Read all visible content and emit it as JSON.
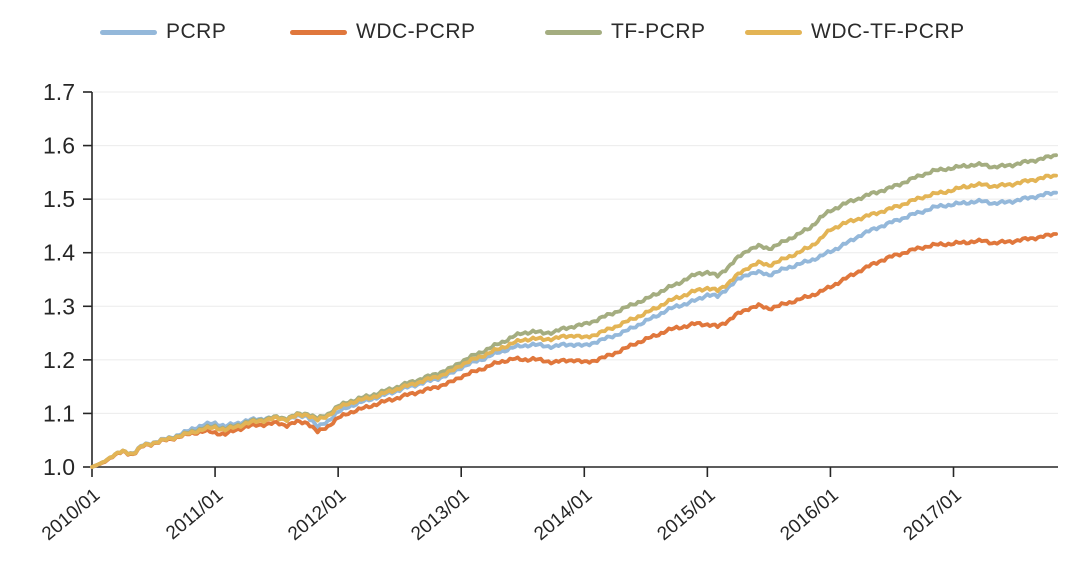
{
  "legend": {
    "items": [
      {
        "label": "PCRP",
        "color": "#94b8da"
      },
      {
        "label": "WDC-PCRP",
        "color": "#e0773c"
      },
      {
        "label": "TF-PCRP",
        "color": "#a4ad80"
      },
      {
        "label": "WDC-TF-PCRP",
        "color": "#e3b455"
      }
    ]
  },
  "chart_data": {
    "type": "line",
    "title": "",
    "xlabel": "",
    "ylabel": "",
    "ylim": [
      1.0,
      1.7
    ],
    "grid": "horizontal",
    "legend_position": "top",
    "y_tick_labels": [
      "1.0",
      "1.1",
      "1.2",
      "1.3",
      "1.4",
      "1.5",
      "1.6",
      "1.7"
    ],
    "y_ticks": [
      1.0,
      1.1,
      1.2,
      1.3,
      1.4,
      1.5,
      1.6,
      1.7
    ],
    "x_tick_labels": [
      "2010/01",
      "2011/01",
      "2012/01",
      "2013/01",
      "2014/01",
      "2015/01",
      "2016/01",
      "2017/01"
    ],
    "categories": [
      "2010/01",
      "2010/02",
      "2010/03",
      "2010/04",
      "2010/05",
      "2010/06",
      "2010/07",
      "2010/08",
      "2010/09",
      "2010/10",
      "2010/11",
      "2010/12",
      "2011/01",
      "2011/02",
      "2011/03",
      "2011/04",
      "2011/05",
      "2011/06",
      "2011/07",
      "2011/08",
      "2011/09",
      "2011/10",
      "2011/11",
      "2011/12",
      "2012/01",
      "2012/02",
      "2012/03",
      "2012/04",
      "2012/05",
      "2012/06",
      "2012/07",
      "2012/08",
      "2012/09",
      "2012/10",
      "2012/11",
      "2012/12",
      "2013/01",
      "2013/02",
      "2013/03",
      "2013/04",
      "2013/05",
      "2013/06",
      "2013/07",
      "2013/08",
      "2013/09",
      "2013/10",
      "2013/11",
      "2013/12",
      "2014/01",
      "2014/02",
      "2014/03",
      "2014/04",
      "2014/05",
      "2014/06",
      "2014/07",
      "2014/08",
      "2014/09",
      "2014/10",
      "2014/11",
      "2014/12",
      "2015/01",
      "2015/02",
      "2015/03",
      "2015/04",
      "2015/05",
      "2015/06",
      "2015/07",
      "2015/08",
      "2015/09",
      "2015/10",
      "2015/11",
      "2015/12",
      "2016/01",
      "2016/02",
      "2016/03",
      "2016/04",
      "2016/05",
      "2016/06",
      "2016/07",
      "2016/08",
      "2016/09",
      "2016/10",
      "2016/11",
      "2016/12",
      "2017/01",
      "2017/02",
      "2017/03",
      "2017/04",
      "2017/05",
      "2017/06",
      "2017/07",
      "2017/08",
      "2017/09",
      "2017/10",
      "2017/11"
    ],
    "series": [
      {
        "name": "PCRP",
        "color": "#94b8da",
        "values": [
          1.0,
          1.008,
          1.021,
          1.029,
          1.026,
          1.041,
          1.046,
          1.051,
          1.057,
          1.064,
          1.073,
          1.079,
          1.082,
          1.076,
          1.081,
          1.086,
          1.089,
          1.091,
          1.092,
          1.089,
          1.094,
          1.096,
          1.074,
          1.086,
          1.102,
          1.113,
          1.119,
          1.126,
          1.131,
          1.138,
          1.144,
          1.15,
          1.156,
          1.161,
          1.167,
          1.174,
          1.186,
          1.194,
          1.201,
          1.209,
          1.216,
          1.223,
          1.226,
          1.229,
          1.226,
          1.225,
          1.228,
          1.229,
          1.226,
          1.233,
          1.239,
          1.246,
          1.253,
          1.263,
          1.272,
          1.282,
          1.292,
          1.3,
          1.305,
          1.312,
          1.322,
          1.318,
          1.335,
          1.35,
          1.361,
          1.363,
          1.359,
          1.366,
          1.373,
          1.379,
          1.385,
          1.393,
          1.402,
          1.412,
          1.422,
          1.434,
          1.442,
          1.45,
          1.457,
          1.464,
          1.471,
          1.477,
          1.484,
          1.488,
          1.49,
          1.493,
          1.495,
          1.496,
          1.492,
          1.494,
          1.497,
          1.501,
          1.505,
          1.509,
          1.512
        ]
      },
      {
        "name": "WDC-PCRP",
        "color": "#e0773c",
        "values": [
          1.0,
          1.007,
          1.02,
          1.028,
          1.024,
          1.039,
          1.044,
          1.049,
          1.054,
          1.059,
          1.064,
          1.067,
          1.064,
          1.061,
          1.069,
          1.075,
          1.078,
          1.08,
          1.082,
          1.078,
          1.084,
          1.083,
          1.065,
          1.076,
          1.091,
          1.101,
          1.107,
          1.113,
          1.119,
          1.125,
          1.13,
          1.136,
          1.141,
          1.146,
          1.152,
          1.158,
          1.169,
          1.176,
          1.183,
          1.191,
          1.197,
          1.202,
          1.2,
          1.202,
          1.198,
          1.196,
          1.198,
          1.2,
          1.195,
          1.199,
          1.205,
          1.213,
          1.221,
          1.231,
          1.238,
          1.246,
          1.254,
          1.26,
          1.263,
          1.268,
          1.266,
          1.262,
          1.273,
          1.286,
          1.296,
          1.301,
          1.296,
          1.301,
          1.307,
          1.313,
          1.319,
          1.327,
          1.336,
          1.347,
          1.357,
          1.368,
          1.377,
          1.386,
          1.393,
          1.399,
          1.405,
          1.41,
          1.414,
          1.416,
          1.417,
          1.419,
          1.421,
          1.422,
          1.418,
          1.42,
          1.422,
          1.425,
          1.428,
          1.431,
          1.435
        ]
      },
      {
        "name": "TF-PCRP",
        "color": "#a4ad80",
        "values": [
          1.0,
          1.008,
          1.021,
          1.029,
          1.025,
          1.04,
          1.045,
          1.05,
          1.056,
          1.061,
          1.068,
          1.073,
          1.076,
          1.071,
          1.077,
          1.083,
          1.087,
          1.09,
          1.093,
          1.091,
          1.098,
          1.1,
          1.09,
          1.099,
          1.113,
          1.122,
          1.127,
          1.133,
          1.138,
          1.145,
          1.151,
          1.158,
          1.164,
          1.17,
          1.177,
          1.184,
          1.197,
          1.206,
          1.215,
          1.224,
          1.233,
          1.243,
          1.25,
          1.253,
          1.25,
          1.252,
          1.258,
          1.263,
          1.266,
          1.273,
          1.281,
          1.289,
          1.297,
          1.306,
          1.313,
          1.323,
          1.333,
          1.341,
          1.352,
          1.36,
          1.364,
          1.356,
          1.373,
          1.391,
          1.406,
          1.412,
          1.408,
          1.416,
          1.426,
          1.436,
          1.446,
          1.465,
          1.478,
          1.488,
          1.496,
          1.503,
          1.51,
          1.516,
          1.522,
          1.53,
          1.538,
          1.546,
          1.552,
          1.556,
          1.558,
          1.562,
          1.564,
          1.564,
          1.56,
          1.562,
          1.565,
          1.569,
          1.573,
          1.577,
          1.582
        ]
      },
      {
        "name": "WDC-TF-PCRP",
        "color": "#e3b455",
        "values": [
          1.0,
          1.008,
          1.021,
          1.029,
          1.025,
          1.04,
          1.045,
          1.05,
          1.055,
          1.06,
          1.066,
          1.071,
          1.074,
          1.069,
          1.075,
          1.081,
          1.085,
          1.088,
          1.091,
          1.089,
          1.096,
          1.098,
          1.087,
          1.096,
          1.11,
          1.119,
          1.124,
          1.129,
          1.134,
          1.141,
          1.147,
          1.153,
          1.159,
          1.165,
          1.171,
          1.178,
          1.191,
          1.199,
          1.207,
          1.215,
          1.223,
          1.231,
          1.237,
          1.24,
          1.238,
          1.24,
          1.243,
          1.246,
          1.241,
          1.247,
          1.254,
          1.262,
          1.27,
          1.279,
          1.287,
          1.297,
          1.307,
          1.316,
          1.322,
          1.33,
          1.334,
          1.329,
          1.343,
          1.359,
          1.373,
          1.381,
          1.377,
          1.384,
          1.393,
          1.401,
          1.411,
          1.425,
          1.443,
          1.452,
          1.459,
          1.465,
          1.471,
          1.477,
          1.483,
          1.49,
          1.497,
          1.504,
          1.509,
          1.513,
          1.517,
          1.523,
          1.526,
          1.527,
          1.524,
          1.526,
          1.529,
          1.533,
          1.537,
          1.541,
          1.544
        ]
      }
    ],
    "style": {
      "axis_color": "#262626",
      "grid_color": "#ebebeb",
      "tick_label_color": "#262626"
    }
  }
}
